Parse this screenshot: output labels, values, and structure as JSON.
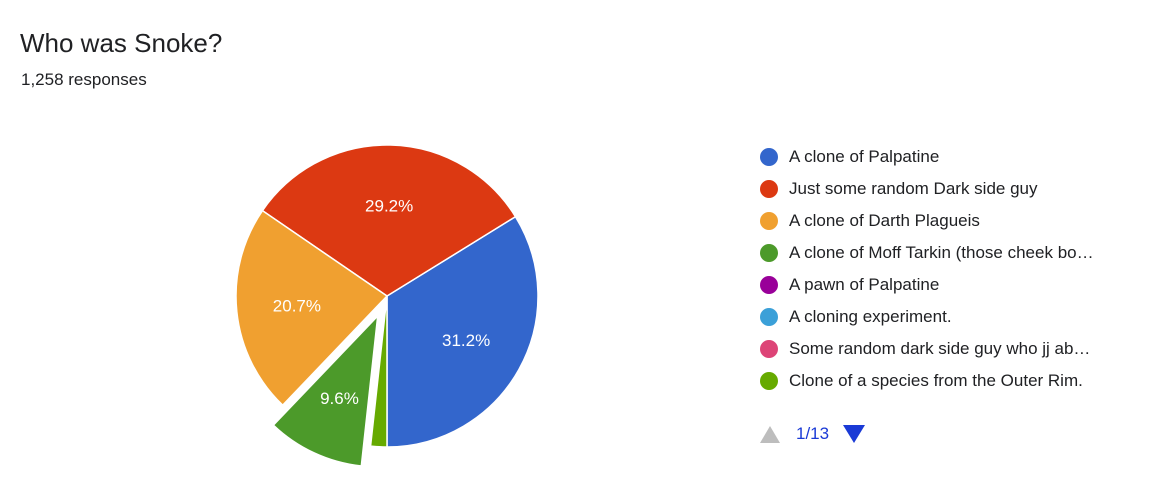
{
  "header": {
    "title": "Who was Snoke?",
    "responses": "1,258 responses"
  },
  "chart_data": {
    "type": "pie",
    "title": "Who was Snoke?",
    "slices": [
      {
        "name": "A clone of Palpatine",
        "value": 31.2,
        "label": "31.2%",
        "color": "#3366cc"
      },
      {
        "name": "Just some random Dark side guy",
        "value": 29.2,
        "label": "29.2%",
        "color": "#dc3912"
      },
      {
        "name": "A clone of Darth Plagueis",
        "value": 20.7,
        "label": "20.7%",
        "color": "#f0a030"
      },
      {
        "name": "A clone of Moff Tarkin (those cheek bo…",
        "value": 9.6,
        "label": "9.6%",
        "color": "#4c9a2a"
      },
      {
        "name": "A pawn of Palpatine",
        "value": 0,
        "label": "",
        "color": "#990099"
      },
      {
        "name": "A cloning experiment.",
        "value": 0,
        "label": "",
        "color": "#3ba0d8"
      },
      {
        "name": "Some random dark side guy who jj ab…",
        "value": 0,
        "label": "",
        "color": "#dd4477"
      },
      {
        "name": "Clone of a species from the Outer Rim.",
        "value": 1.6,
        "label": "",
        "color": "#66aa00"
      }
    ],
    "legend_position": "right"
  },
  "pager": {
    "text": "1/13"
  }
}
